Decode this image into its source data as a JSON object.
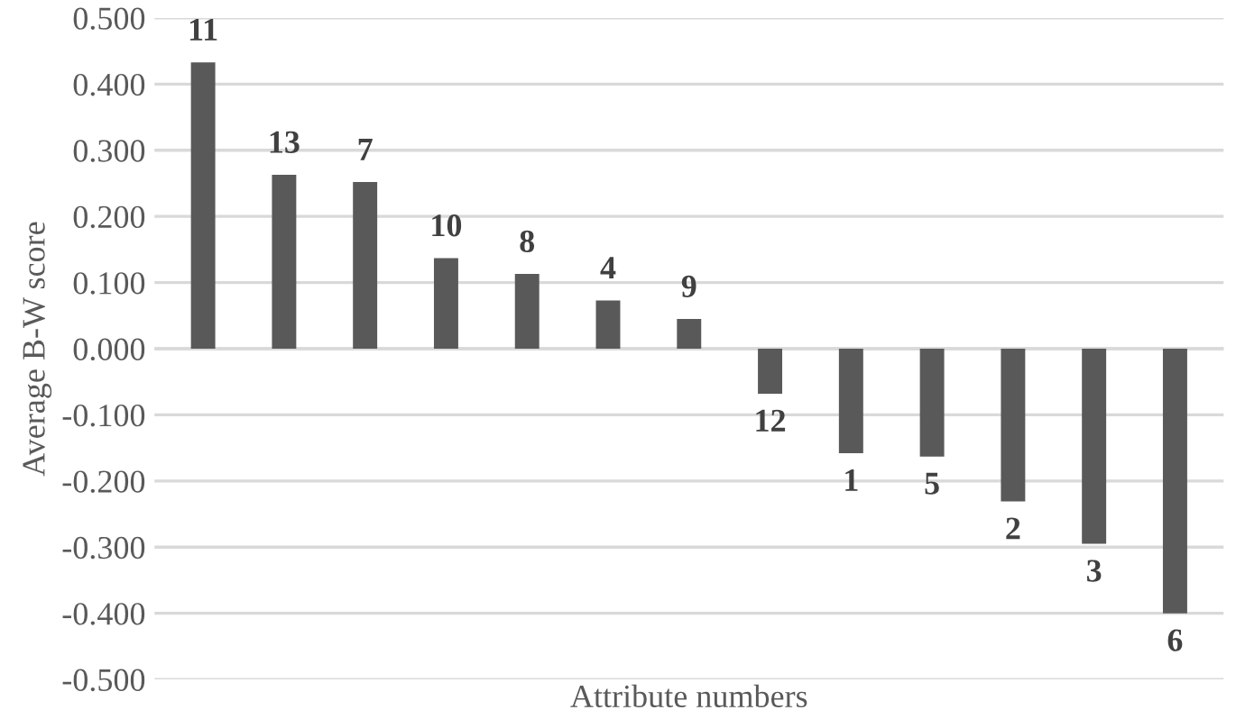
{
  "chart_data": {
    "type": "bar",
    "xlabel": "Attribute numbers",
    "ylabel": "Average B-W score",
    "categories": [
      "11",
      "13",
      "7",
      "10",
      "8",
      "4",
      "9",
      "12",
      "1",
      "5",
      "2",
      "3",
      "6"
    ],
    "values": [
      0.433,
      0.263,
      0.252,
      0.137,
      0.113,
      0.073,
      0.045,
      -0.068,
      -0.158,
      -0.163,
      -0.231,
      -0.295,
      -0.4
    ],
    "color": "#595959",
    "ylim": [
      -0.5,
      0.5
    ],
    "yticks": [
      {
        "value": -0.5,
        "label": "-0.500"
      },
      {
        "value": -0.4,
        "label": "-0.400"
      },
      {
        "value": -0.3,
        "label": "-0.300"
      },
      {
        "value": -0.2,
        "label": "-0.200"
      },
      {
        "value": -0.1,
        "label": "-0.100"
      },
      {
        "value": 0,
        "label": "0.000"
      },
      {
        "value": 0.1,
        "label": "0.100"
      },
      {
        "value": 0.2,
        "label": "0.200"
      },
      {
        "value": 0.3,
        "label": "0.300"
      },
      {
        "value": 0.4,
        "label": "0.400"
      },
      {
        "value": 0.5,
        "label": "0.500"
      }
    ],
    "grid": "y"
  }
}
